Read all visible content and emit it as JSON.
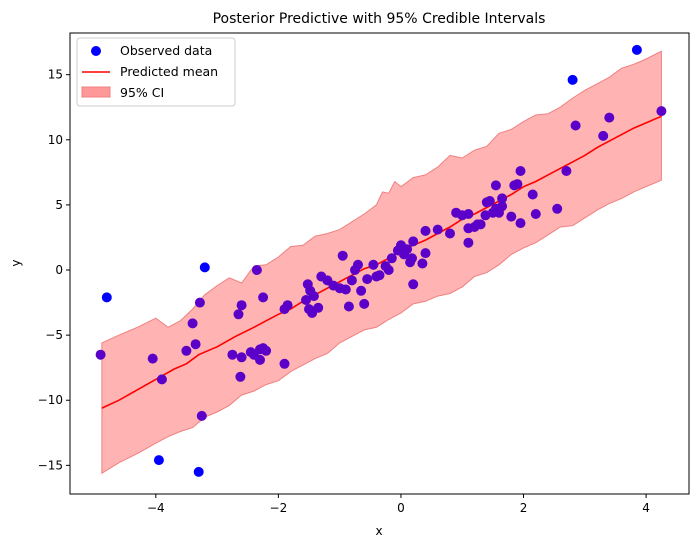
{
  "chart_data": {
    "type": "scatter",
    "title": "Posterior Predictive with 95% Credible Intervals",
    "xlabel": "x",
    "ylabel": "y",
    "xlim": [
      -5.4,
      4.7
    ],
    "ylim": [
      -17.2,
      18.2
    ],
    "xticks": [
      -4,
      -2,
      0,
      2,
      4
    ],
    "yticks": [
      -15,
      -10,
      -5,
      0,
      5,
      10,
      15
    ],
    "grid": false,
    "legend_position": "upper-left",
    "colors": {
      "observed": "#0000ff",
      "observed_inside_band": "#5a00c8",
      "mean_line": "#ff0000",
      "ci_fill": "#ff9999",
      "ci_edge": "#f08080"
    },
    "legend": [
      {
        "label": "Observed data",
        "kind": "marker"
      },
      {
        "label": "Predicted mean",
        "kind": "line"
      },
      {
        "label": "95% CI",
        "kind": "patch"
      }
    ],
    "series": [
      {
        "name": "Observed data",
        "kind": "scatter",
        "points": [
          [
            -4.9,
            -6.5
          ],
          [
            -4.8,
            -2.1
          ],
          [
            -4.05,
            -6.8
          ],
          [
            -3.95,
            -14.6
          ],
          [
            -3.9,
            -8.4
          ],
          [
            -3.5,
            -6.2
          ],
          [
            -3.4,
            -4.1
          ],
          [
            -3.35,
            -5.7
          ],
          [
            -3.3,
            -15.5
          ],
          [
            -3.28,
            -2.5
          ],
          [
            -3.25,
            -11.2
          ],
          [
            -3.2,
            0.2
          ],
          [
            -2.75,
            -6.5
          ],
          [
            -2.65,
            -3.4
          ],
          [
            -2.62,
            -8.2
          ],
          [
            -2.6,
            -2.7
          ],
          [
            -2.6,
            -6.7
          ],
          [
            -2.45,
            -6.3
          ],
          [
            -2.4,
            -6.5
          ],
          [
            -2.35,
            0.0
          ],
          [
            -2.3,
            -6.1
          ],
          [
            -2.3,
            -6.9
          ],
          [
            -2.25,
            -6.0
          ],
          [
            -2.2,
            -6.2
          ],
          [
            -2.25,
            -2.1
          ],
          [
            -1.9,
            -3.0
          ],
          [
            -1.9,
            -7.2
          ],
          [
            -1.85,
            -2.7
          ],
          [
            -1.55,
            -2.3
          ],
          [
            -1.52,
            -1.1
          ],
          [
            -1.5,
            -3.0
          ],
          [
            -1.48,
            -1.6
          ],
          [
            -1.45,
            -3.3
          ],
          [
            -1.42,
            -2.0
          ],
          [
            -1.35,
            -2.9
          ],
          [
            -1.3,
            -0.5
          ],
          [
            -1.2,
            -0.8
          ],
          [
            -1.1,
            -1.2
          ],
          [
            -1.0,
            -1.4
          ],
          [
            -0.95,
            1.1
          ],
          [
            -0.9,
            -1.5
          ],
          [
            -0.85,
            -2.8
          ],
          [
            -0.8,
            -0.8
          ],
          [
            -0.75,
            0.0
          ],
          [
            -0.7,
            0.4
          ],
          [
            -0.65,
            -1.6
          ],
          [
            -0.6,
            -2.6
          ],
          [
            -0.55,
            -0.7
          ],
          [
            -0.45,
            0.4
          ],
          [
            -0.4,
            -0.5
          ],
          [
            -0.35,
            -0.4
          ],
          [
            -0.25,
            0.3
          ],
          [
            -0.2,
            0.0
          ],
          [
            -0.15,
            0.9
          ],
          [
            -0.05,
            1.5
          ],
          [
            0.0,
            1.9
          ],
          [
            0.02,
            1.7
          ],
          [
            0.05,
            1.2
          ],
          [
            0.1,
            1.6
          ],
          [
            0.15,
            0.6
          ],
          [
            0.18,
            0.9
          ],
          [
            0.2,
            2.2
          ],
          [
            0.2,
            -1.1
          ],
          [
            0.35,
            0.5
          ],
          [
            0.4,
            1.3
          ],
          [
            0.4,
            3.0
          ],
          [
            0.6,
            3.1
          ],
          [
            0.8,
            2.8
          ],
          [
            0.9,
            4.4
          ],
          [
            1.0,
            4.2
          ],
          [
            1.1,
            4.3
          ],
          [
            1.1,
            3.2
          ],
          [
            1.1,
            2.1
          ],
          [
            1.2,
            3.3
          ],
          [
            1.25,
            3.5
          ],
          [
            1.3,
            3.5
          ],
          [
            1.38,
            4.2
          ],
          [
            1.4,
            5.2
          ],
          [
            1.45,
            5.3
          ],
          [
            1.5,
            4.4
          ],
          [
            1.55,
            6.5
          ],
          [
            1.55,
            4.7
          ],
          [
            1.6,
            4.4
          ],
          [
            1.65,
            5.5
          ],
          [
            1.65,
            4.9
          ],
          [
            1.8,
            4.1
          ],
          [
            1.85,
            6.5
          ],
          [
            1.9,
            6.6
          ],
          [
            1.95,
            3.6
          ],
          [
            1.95,
            7.6
          ],
          [
            2.15,
            5.8
          ],
          [
            2.2,
            4.3
          ],
          [
            2.55,
            4.7
          ],
          [
            2.7,
            7.6
          ],
          [
            2.8,
            14.6
          ],
          [
            2.85,
            11.1
          ],
          [
            3.3,
            10.3
          ],
          [
            3.4,
            11.7
          ],
          [
            3.85,
            16.9
          ],
          [
            4.25,
            12.2
          ]
        ]
      },
      {
        "name": "Predicted mean",
        "kind": "line",
        "points": [
          [
            -4.88,
            -10.6
          ],
          [
            -4.6,
            -10.0
          ],
          [
            -4.3,
            -9.2
          ],
          [
            -4.0,
            -8.4
          ],
          [
            -3.7,
            -7.6
          ],
          [
            -3.5,
            -7.2
          ],
          [
            -3.3,
            -6.5
          ],
          [
            -3.0,
            -5.9
          ],
          [
            -2.7,
            -5.1
          ],
          [
            -2.4,
            -4.4
          ],
          [
            -2.2,
            -3.9
          ],
          [
            -2.0,
            -3.4
          ],
          [
            -1.8,
            -3.0
          ],
          [
            -1.6,
            -2.4
          ],
          [
            -1.4,
            -1.9
          ],
          [
            -1.2,
            -1.4
          ],
          [
            -1.0,
            -0.9
          ],
          [
            -0.8,
            -0.4
          ],
          [
            -0.6,
            0.1
          ],
          [
            -0.4,
            0.4
          ],
          [
            -0.2,
            0.9
          ],
          [
            0.0,
            1.5
          ],
          [
            0.2,
            1.9
          ],
          [
            0.4,
            2.3
          ],
          [
            0.6,
            2.8
          ],
          [
            0.8,
            3.3
          ],
          [
            1.0,
            3.9
          ],
          [
            1.2,
            4.3
          ],
          [
            1.4,
            4.8
          ],
          [
            1.6,
            5.3
          ],
          [
            1.8,
            5.8
          ],
          [
            2.0,
            6.4
          ],
          [
            2.2,
            6.8
          ],
          [
            2.4,
            7.3
          ],
          [
            2.6,
            7.8
          ],
          [
            2.8,
            8.3
          ],
          [
            3.0,
            8.8
          ],
          [
            3.2,
            9.4
          ],
          [
            3.4,
            9.9
          ],
          [
            3.6,
            10.4
          ],
          [
            3.8,
            10.9
          ],
          [
            4.0,
            11.3
          ],
          [
            4.25,
            11.8
          ]
        ]
      },
      {
        "name": "95% CI",
        "kind": "band",
        "upper": [
          [
            -4.88,
            -5.6
          ],
          [
            -4.6,
            -5.0
          ],
          [
            -4.3,
            -4.4
          ],
          [
            -4.0,
            -3.7
          ],
          [
            -3.8,
            -4.4
          ],
          [
            -3.6,
            -3.9
          ],
          [
            -3.4,
            -3.0
          ],
          [
            -3.2,
            -1.9
          ],
          [
            -3.0,
            -1.2
          ],
          [
            -2.8,
            -0.6
          ],
          [
            -2.6,
            -1.0
          ],
          [
            -2.4,
            0.3
          ],
          [
            -2.2,
            0.4
          ],
          [
            -2.0,
            1.0
          ],
          [
            -1.8,
            1.8
          ],
          [
            -1.6,
            1.9
          ],
          [
            -1.4,
            2.6
          ],
          [
            -1.2,
            2.8
          ],
          [
            -1.0,
            3.1
          ],
          [
            -0.8,
            3.7
          ],
          [
            -0.6,
            4.3
          ],
          [
            -0.4,
            5.0
          ],
          [
            -0.3,
            6.0
          ],
          [
            -0.2,
            5.9
          ],
          [
            -0.1,
            6.8
          ],
          [
            0.0,
            6.4
          ],
          [
            0.2,
            7.1
          ],
          [
            0.4,
            7.3
          ],
          [
            0.6,
            7.9
          ],
          [
            0.8,
            8.8
          ],
          [
            1.0,
            8.6
          ],
          [
            1.2,
            9.2
          ],
          [
            1.4,
            9.5
          ],
          [
            1.6,
            10.5
          ],
          [
            1.8,
            10.8
          ],
          [
            2.0,
            11.4
          ],
          [
            2.2,
            11.9
          ],
          [
            2.4,
            12.0
          ],
          [
            2.6,
            12.5
          ],
          [
            2.8,
            13.2
          ],
          [
            3.0,
            13.8
          ],
          [
            3.2,
            14.3
          ],
          [
            3.4,
            14.8
          ],
          [
            3.6,
            15.5
          ],
          [
            3.8,
            15.8
          ],
          [
            4.0,
            16.2
          ],
          [
            4.25,
            16.8
          ]
        ],
        "lower": [
          [
            -4.88,
            -15.6
          ],
          [
            -4.6,
            -14.8
          ],
          [
            -4.3,
            -14.1
          ],
          [
            -4.0,
            -13.3
          ],
          [
            -3.8,
            -12.8
          ],
          [
            -3.6,
            -12.4
          ],
          [
            -3.4,
            -12.1
          ],
          [
            -3.2,
            -11.3
          ],
          [
            -3.0,
            -10.9
          ],
          [
            -2.8,
            -10.4
          ],
          [
            -2.6,
            -9.6
          ],
          [
            -2.4,
            -9.3
          ],
          [
            -2.2,
            -8.8
          ],
          [
            -2.0,
            -8.5
          ],
          [
            -1.8,
            -7.8
          ],
          [
            -1.6,
            -7.3
          ],
          [
            -1.4,
            -6.8
          ],
          [
            -1.2,
            -6.4
          ],
          [
            -1.0,
            -5.6
          ],
          [
            -0.8,
            -5.1
          ],
          [
            -0.6,
            -4.6
          ],
          [
            -0.4,
            -4.4
          ],
          [
            -0.2,
            -3.8
          ],
          [
            0.0,
            -3.3
          ],
          [
            0.2,
            -2.6
          ],
          [
            0.4,
            -2.4
          ],
          [
            0.6,
            -2.0
          ],
          [
            0.8,
            -1.8
          ],
          [
            1.0,
            -1.3
          ],
          [
            1.2,
            -0.5
          ],
          [
            1.4,
            -0.2
          ],
          [
            1.6,
            0.4
          ],
          [
            1.8,
            1.2
          ],
          [
            2.0,
            1.7
          ],
          [
            2.2,
            2.1
          ],
          [
            2.4,
            2.7
          ],
          [
            2.6,
            3.3
          ],
          [
            2.8,
            3.4
          ],
          [
            3.0,
            4.0
          ],
          [
            3.2,
            4.6
          ],
          [
            3.4,
            5.1
          ],
          [
            3.6,
            5.5
          ],
          [
            3.8,
            6.0
          ],
          [
            4.0,
            6.4
          ],
          [
            4.25,
            6.9
          ]
        ]
      }
    ]
  }
}
